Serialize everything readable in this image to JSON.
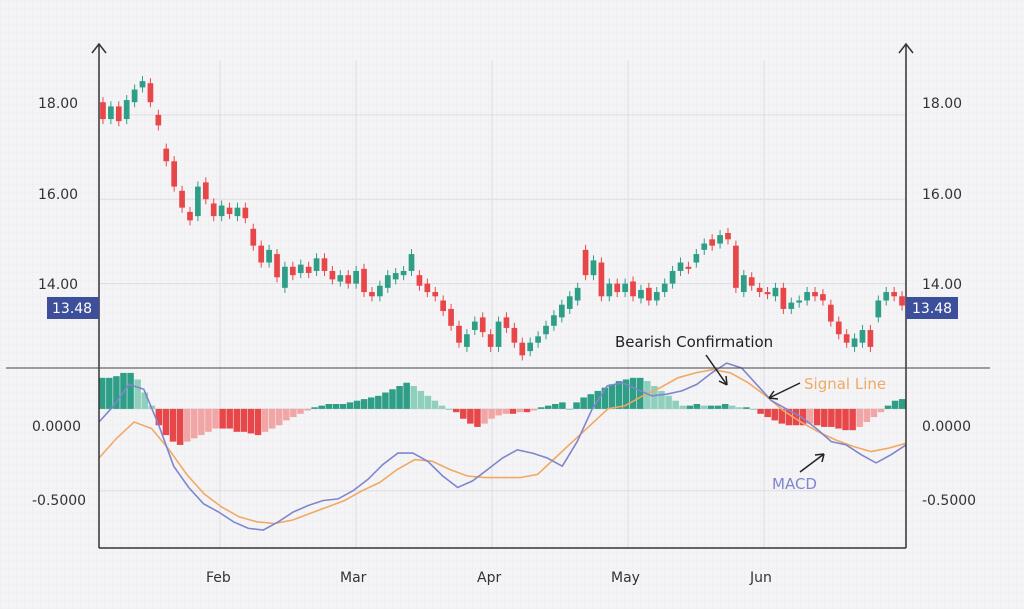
{
  "chart_data": {
    "type": "candlestick",
    "price_panel": {
      "y_ticks": [
        "14.00",
        "16.00",
        "18.00"
      ],
      "ylim": [
        12.0,
        19.3
      ],
      "current_price_label": "13.48",
      "candles": [
        {
          "o": 18.3,
          "c": 17.9
        },
        {
          "o": 17.9,
          "c": 18.2
        },
        {
          "o": 18.2,
          "c": 17.85
        },
        {
          "o": 17.9,
          "c": 18.35
        },
        {
          "o": 18.3,
          "c": 18.6
        },
        {
          "o": 18.65,
          "c": 18.8
        },
        {
          "o": 18.75,
          "c": 18.3
        },
        {
          "o": 18.0,
          "c": 17.75
        },
        {
          "o": 17.2,
          "c": 16.9
        },
        {
          "o": 16.9,
          "c": 16.3
        },
        {
          "o": 16.2,
          "c": 15.8
        },
        {
          "o": 15.7,
          "c": 15.5
        },
        {
          "o": 15.6,
          "c": 16.3
        },
        {
          "o": 16.4,
          "c": 16.0
        },
        {
          "o": 15.9,
          "c": 15.6
        },
        {
          "o": 15.6,
          "c": 15.85
        },
        {
          "o": 15.8,
          "c": 15.65
        },
        {
          "o": 15.6,
          "c": 15.8
        },
        {
          "o": 15.8,
          "c": 15.55
        },
        {
          "o": 15.3,
          "c": 14.9
        },
        {
          "o": 14.9,
          "c": 14.5
        },
        {
          "o": 14.5,
          "c": 14.8
        },
        {
          "o": 14.7,
          "c": 14.15
        },
        {
          "o": 13.9,
          "c": 14.4
        },
        {
          "o": 14.4,
          "c": 14.2
        },
        {
          "o": 14.25,
          "c": 14.45
        },
        {
          "o": 14.4,
          "c": 14.25
        },
        {
          "o": 14.3,
          "c": 14.6
        },
        {
          "o": 14.6,
          "c": 14.3
        },
        {
          "o": 14.3,
          "c": 14.1
        },
        {
          "o": 14.05,
          "c": 14.2
        },
        {
          "o": 14.2,
          "c": 14.0
        },
        {
          "o": 14.0,
          "c": 14.3
        },
        {
          "o": 14.35,
          "c": 13.8
        },
        {
          "o": 13.8,
          "c": 13.7
        },
        {
          "o": 13.7,
          "c": 13.95
        },
        {
          "o": 13.9,
          "c": 14.2
        },
        {
          "o": 14.1,
          "c": 14.25
        },
        {
          "o": 14.2,
          "c": 14.3
        },
        {
          "o": 14.3,
          "c": 14.7
        },
        {
          "o": 14.2,
          "c": 13.95
        },
        {
          "o": 14.0,
          "c": 13.8
        },
        {
          "o": 13.8,
          "c": 13.7
        },
        {
          "o": 13.6,
          "c": 13.35
        },
        {
          "o": 13.4,
          "c": 13.0
        },
        {
          "o": 13.0,
          "c": 12.6
        },
        {
          "o": 12.5,
          "c": 12.8
        },
        {
          "o": 12.9,
          "c": 13.1
        },
        {
          "o": 13.2,
          "c": 12.85
        },
        {
          "o": 12.8,
          "c": 12.5
        },
        {
          "o": 12.5,
          "c": 13.1
        },
        {
          "o": 13.2,
          "c": 12.95
        },
        {
          "o": 12.95,
          "c": 12.6
        },
        {
          "o": 12.6,
          "c": 12.3
        },
        {
          "o": 12.4,
          "c": 12.6
        },
        {
          "o": 12.6,
          "c": 12.75
        },
        {
          "o": 12.8,
          "c": 13.0
        },
        {
          "o": 13.0,
          "c": 13.25
        },
        {
          "o": 13.2,
          "c": 13.5
        },
        {
          "o": 13.4,
          "c": 13.7
        },
        {
          "o": 13.6,
          "c": 13.9
        },
        {
          "o": 14.8,
          "c": 14.2
        },
        {
          "o": 14.2,
          "c": 14.55
        },
        {
          "o": 14.5,
          "c": 13.7
        },
        {
          "o": 13.7,
          "c": 14.0
        },
        {
          "o": 14.0,
          "c": 13.8
        },
        {
          "o": 13.8,
          "c": 14.0
        },
        {
          "o": 14.05,
          "c": 13.7
        },
        {
          "o": 13.65,
          "c": 13.85
        },
        {
          "o": 13.9,
          "c": 13.6
        },
        {
          "o": 13.6,
          "c": 13.8
        },
        {
          "o": 13.8,
          "c": 14.0
        },
        {
          "o": 14.0,
          "c": 14.3
        },
        {
          "o": 14.3,
          "c": 14.5
        },
        {
          "o": 14.4,
          "c": 14.35
        },
        {
          "o": 14.5,
          "c": 14.7
        },
        {
          "o": 14.8,
          "c": 14.95
        },
        {
          "o": 15.05,
          "c": 14.9
        },
        {
          "o": 14.95,
          "c": 15.15
        },
        {
          "o": 15.2,
          "c": 15.05
        },
        {
          "o": 14.9,
          "c": 13.9
        },
        {
          "o": 13.8,
          "c": 14.2
        },
        {
          "o": 14.15,
          "c": 13.95
        },
        {
          "o": 13.9,
          "c": 13.8
        },
        {
          "o": 13.8,
          "c": 13.75
        },
        {
          "o": 13.7,
          "c": 13.9
        },
        {
          "o": 13.9,
          "c": 13.4
        },
        {
          "o": 13.4,
          "c": 13.55
        },
        {
          "o": 13.55,
          "c": 13.6
        },
        {
          "o": 13.6,
          "c": 13.8
        },
        {
          "o": 13.8,
          "c": 13.7
        },
        {
          "o": 13.75,
          "c": 13.6
        },
        {
          "o": 13.5,
          "c": 13.1
        },
        {
          "o": 13.1,
          "c": 12.8
        },
        {
          "o": 12.8,
          "c": 12.6
        },
        {
          "o": 12.5,
          "c": 12.7
        },
        {
          "o": 12.6,
          "c": 12.9
        },
        {
          "o": 12.9,
          "c": 12.5
        },
        {
          "o": 13.2,
          "c": 13.6
        },
        {
          "o": 13.6,
          "c": 13.8
        },
        {
          "o": 13.8,
          "c": 13.7
        },
        {
          "o": 13.7,
          "c": 13.48
        }
      ]
    },
    "macd_panel": {
      "y_ticks": [
        "-0.5000",
        "0.0000"
      ],
      "ylim": [
        -0.85,
        0.25
      ],
      "histogram": [
        0.19,
        0.19,
        0.2,
        0.22,
        0.22,
        0.18,
        0.1,
        0.02,
        -0.1,
        -0.16,
        -0.2,
        -0.22,
        -0.2,
        -0.18,
        -0.16,
        -0.14,
        -0.12,
        -0.12,
        -0.12,
        -0.14,
        -0.14,
        -0.15,
        -0.16,
        -0.14,
        -0.12,
        -0.1,
        -0.07,
        -0.05,
        -0.03,
        -0.01,
        0.01,
        0.02,
        0.03,
        0.03,
        0.03,
        0.04,
        0.05,
        0.06,
        0.07,
        0.08,
        0.1,
        0.12,
        0.14,
        0.16,
        0.14,
        0.11,
        0.08,
        0.05,
        0.02,
        0.0,
        -0.02,
        -0.06,
        -0.09,
        -0.11,
        -0.09,
        -0.06,
        -0.04,
        -0.03,
        -0.03,
        -0.02,
        -0.02,
        -0.01,
        0.01,
        0.02,
        0.03,
        0.04,
        0.0,
        0.04,
        0.07,
        0.09,
        0.11,
        0.13,
        0.15,
        0.17,
        0.18,
        0.19,
        0.19,
        0.17,
        0.14,
        0.11,
        0.08,
        0.05,
        0.02,
        0.02,
        0.03,
        0.02,
        0.02,
        0.02,
        0.03,
        0.02,
        0.01,
        0.01,
        0.0,
        -0.03,
        -0.05,
        -0.07,
        -0.09,
        -0.1,
        -0.1,
        -0.1,
        -0.09,
        -0.1,
        -0.11,
        -0.11,
        -0.12,
        -0.13,
        -0.13,
        -0.11,
        -0.08,
        -0.05,
        -0.02,
        0.02,
        0.05,
        0.06
      ],
      "macd_line": [
        -0.08,
        0.02,
        0.15,
        0.12,
        -0.1,
        -0.35,
        -0.48,
        -0.58,
        -0.63,
        -0.69,
        -0.73,
        -0.74,
        -0.69,
        -0.63,
        -0.59,
        -0.56,
        -0.55,
        -0.5,
        -0.43,
        -0.34,
        -0.27,
        -0.27,
        -0.32,
        -0.41,
        -0.48,
        -0.44,
        -0.37,
        -0.3,
        -0.25,
        -0.27,
        -0.3,
        -0.35,
        -0.2,
        0.0,
        0.14,
        0.16,
        0.12,
        0.08,
        0.09,
        0.11,
        0.15,
        0.22,
        0.28,
        0.25,
        0.15,
        0.05,
        0.0,
        -0.05,
        -0.12,
        -0.2,
        -0.22,
        -0.28,
        -0.33,
        -0.28,
        -0.22
      ],
      "signal_line": [
        -0.3,
        -0.18,
        -0.08,
        -0.12,
        -0.25,
        -0.4,
        -0.52,
        -0.6,
        -0.66,
        -0.69,
        -0.7,
        -0.68,
        -0.64,
        -0.6,
        -0.56,
        -0.5,
        -0.45,
        -0.37,
        -0.31,
        -0.32,
        -0.37,
        -0.41,
        -0.42,
        -0.42,
        -0.42,
        -0.4,
        -0.3,
        -0.2,
        -0.1,
        0.0,
        0.02,
        0.08,
        0.13,
        0.19,
        0.22,
        0.24,
        0.22,
        0.16,
        0.08,
        -0.01,
        -0.08,
        -0.14,
        -0.19,
        -0.23,
        -0.26,
        -0.24,
        -0.21
      ]
    },
    "x_labels": [
      "Feb",
      "Mar",
      "Apr",
      "May",
      "Jun"
    ],
    "annotations": {
      "bearish": "Bearish Confirmation",
      "signal": "Signal Line",
      "macd": "MACD"
    },
    "colors": {
      "up": "#2f9e86",
      "down": "#e8474a",
      "hist_up_light": "#8fcfbd",
      "hist_down_light": "#f2a5a5",
      "macd_line": "#7f86cc",
      "signal_line": "#f0a962",
      "price_box": "#3d4f9a",
      "grid": "#dcdce2"
    }
  }
}
